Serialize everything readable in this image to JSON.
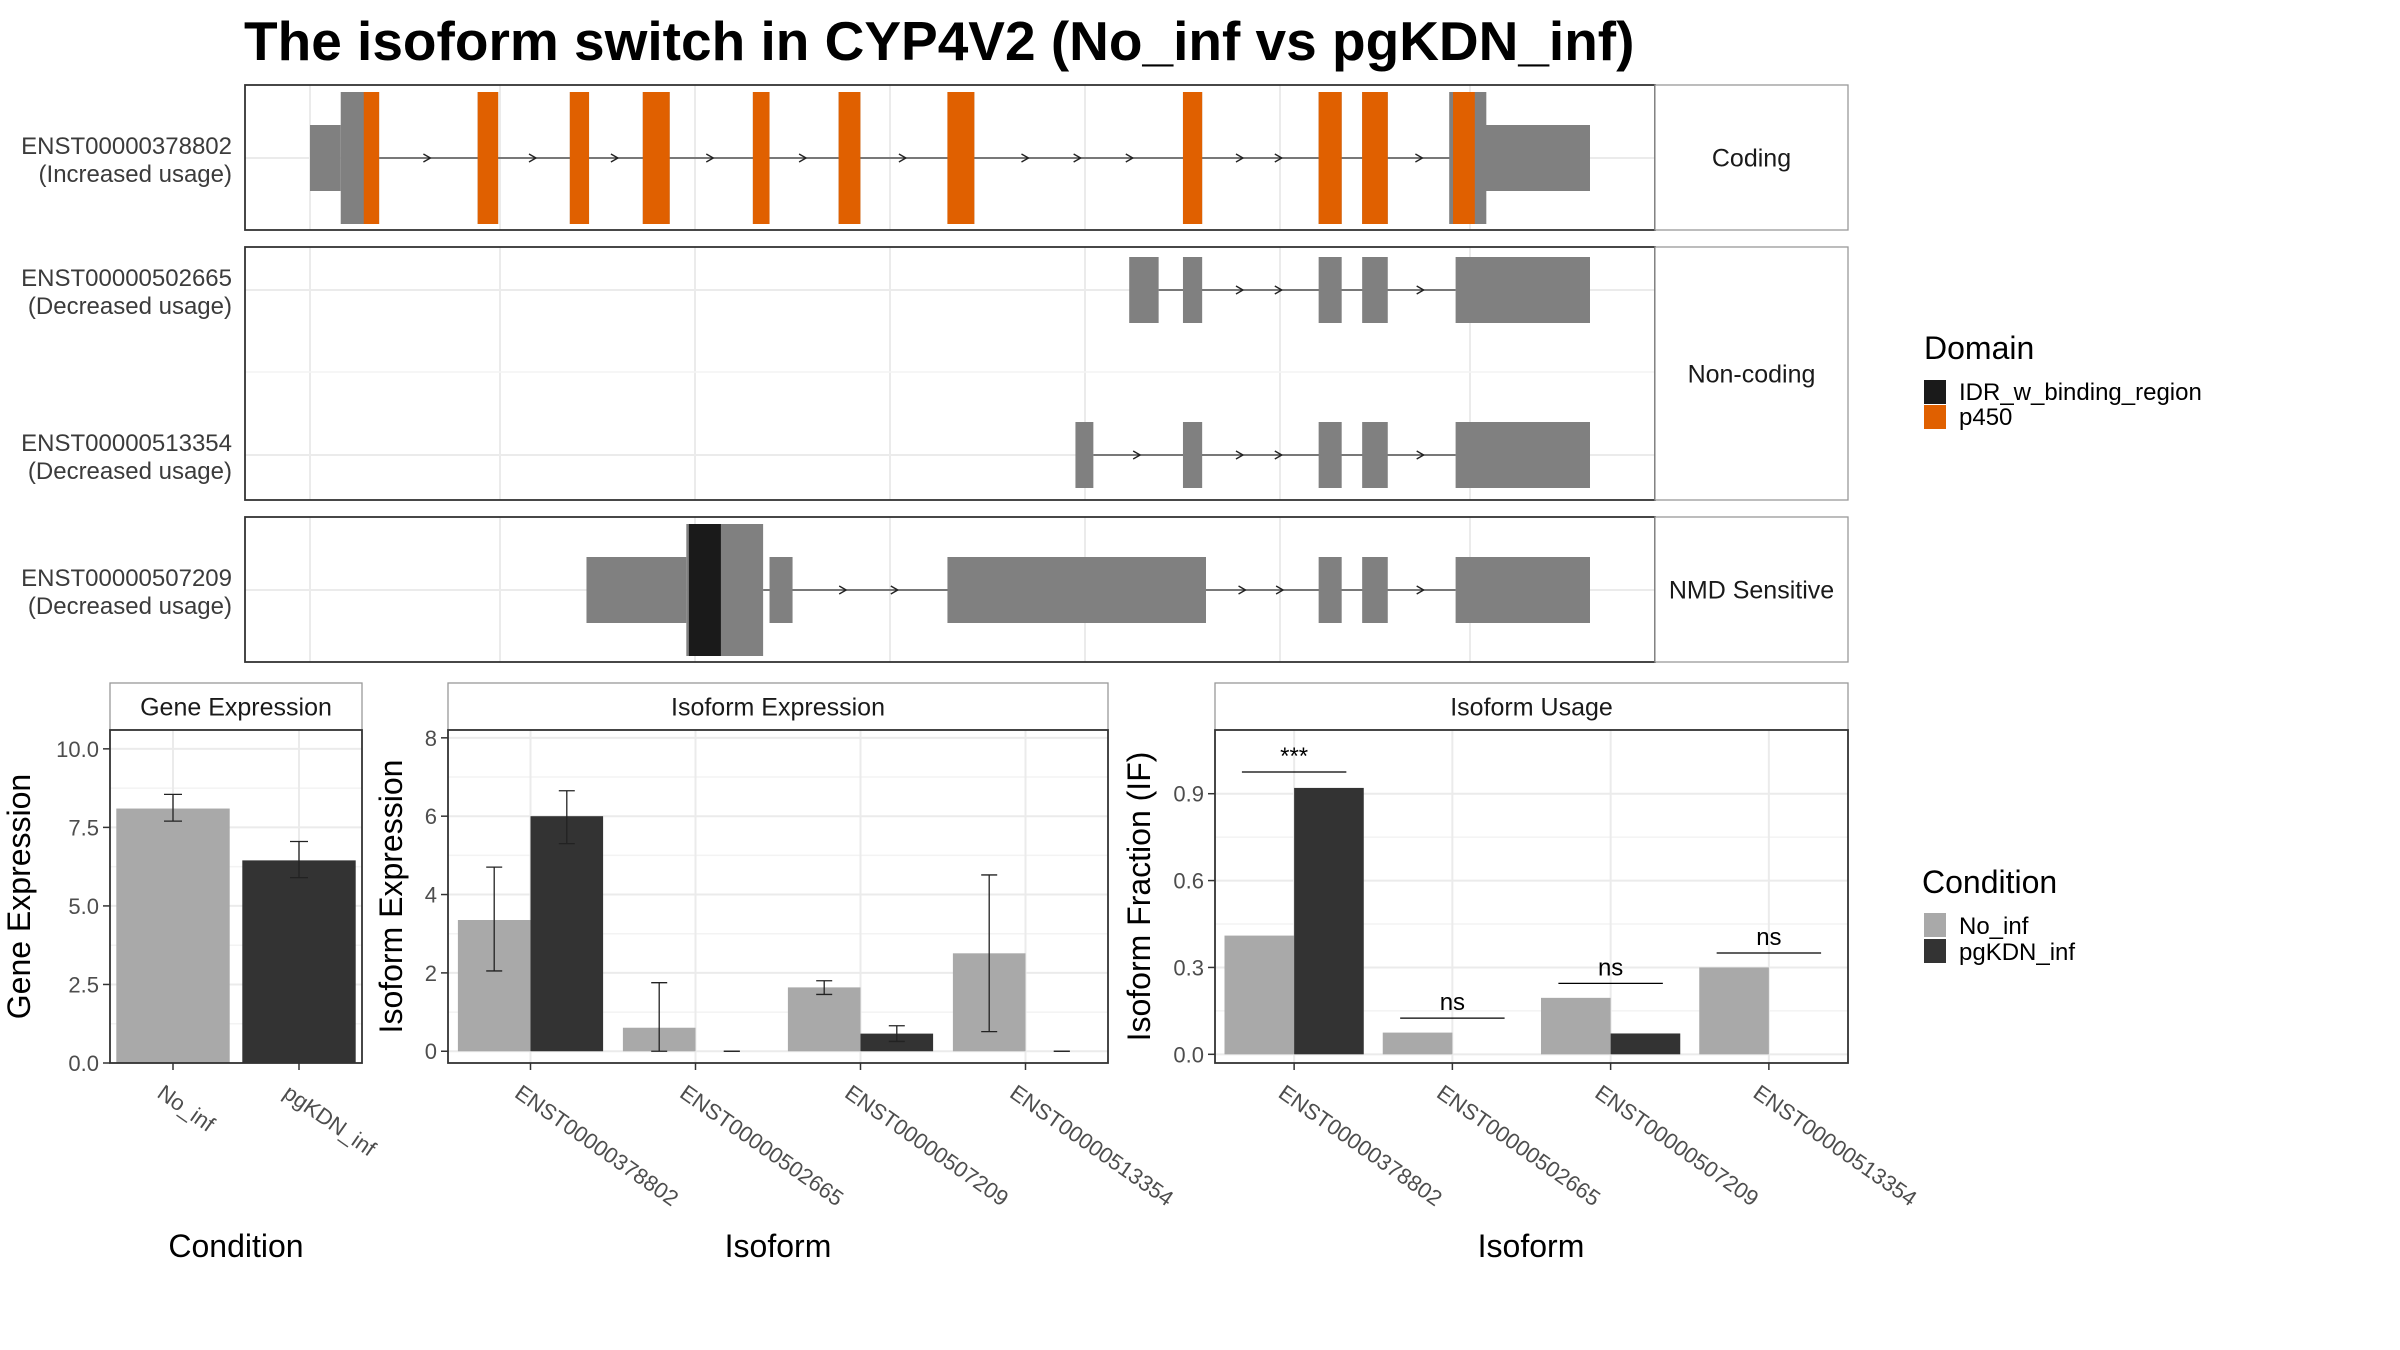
{
  "title": "The isoform switch in CYP4V2 (No_inf vs pgKDN_inf)",
  "colors": {
    "exon": "#808080",
    "p450": "#E06000",
    "idr": "#1a1a1a",
    "no_inf": "#a9a9a9",
    "pgkdn_inf": "#333333",
    "grid": "#ebebeb",
    "panel_border": "#333333",
    "strip_border": "#999999"
  },
  "structure": {
    "coord_range": [
      0,
      1000
    ],
    "panels": [
      {
        "label": "Coding",
        "transcripts": [
          {
            "id": "ENST00000378802",
            "usage": "(Increased usage)",
            "exons": [
              [
                0,
                24,
                "utr"
              ],
              [
                24,
                43,
                "cds"
              ],
              [
                900,
                1000,
                "utr"
              ],
              [
                890,
                919,
                "cds"
              ]
            ],
            "domains": [
              [
                42,
                54,
                "p450"
              ],
              [
                131,
                147,
                "p450"
              ],
              [
                203,
                218,
                "p450"
              ],
              [
                260,
                281,
                "p450"
              ],
              [
                346,
                359,
                "p450"
              ],
              [
                413,
                430,
                "p450"
              ],
              [
                498,
                519,
                "p450"
              ],
              [
                682,
                697,
                "p450"
              ],
              [
                788,
                806,
                "p450"
              ],
              [
                822,
                842,
                "p450"
              ],
              [
                893,
                910,
                "p450"
              ]
            ],
            "cds_blocks": [
              [
                42,
                54
              ],
              [
                131,
                147
              ],
              [
                203,
                218
              ],
              [
                260,
                281
              ],
              [
                346,
                359
              ],
              [
                413,
                430
              ],
              [
                498,
                519
              ],
              [
                682,
                697
              ],
              [
                788,
                806
              ],
              [
                822,
                842
              ],
              [
                893,
                910
              ]
            ],
            "intron_range": [
              54,
              900
            ]
          }
        ]
      },
      {
        "label": "Non-coding",
        "transcripts": [
          {
            "id": "ENST00000502665",
            "usage": "(Decreased usage)",
            "exons": [
              [
                640,
                663,
                "nc"
              ],
              [
                682,
                697,
                "nc"
              ],
              [
                788,
                806,
                "nc"
              ],
              [
                822,
                842,
                "nc"
              ],
              [
                895,
                1000,
                "nc"
              ]
            ],
            "intron_range": [
              663,
              895
            ]
          },
          {
            "id": "ENST00000513354",
            "usage": "(Decreased usage)",
            "exons": [
              [
                598,
                612,
                "nc"
              ],
              [
                682,
                697,
                "nc"
              ],
              [
                788,
                806,
                "nc"
              ],
              [
                822,
                842,
                "nc"
              ],
              [
                895,
                1000,
                "nc"
              ]
            ],
            "intron_range": [
              612,
              895
            ]
          }
        ]
      },
      {
        "label": "NMD Sensitive",
        "transcripts": [
          {
            "id": "ENST00000507209",
            "usage": "(Decreased usage)",
            "exons": [
              [
                216,
                294,
                "nc"
              ],
              [
                294,
                354,
                "cds"
              ],
              [
                359,
                377,
                "nc"
              ],
              [
                498,
                700,
                "nc"
              ],
              [
                788,
                806,
                "nc"
              ],
              [
                822,
                842,
                "nc"
              ],
              [
                895,
                1000,
                "nc"
              ]
            ],
            "domains": [
              [
                296,
                321,
                "idr"
              ]
            ],
            "intron_range": [
              354,
              895
            ]
          }
        ]
      }
    ]
  },
  "legend_domain": {
    "title": "Domain",
    "items": [
      {
        "label": "IDR_w_binding_region",
        "color": "#1a1a1a"
      },
      {
        "label": "p450",
        "color": "#E06000"
      }
    ]
  },
  "legend_condition": {
    "title": "Condition",
    "items": [
      {
        "label": "No_inf",
        "color": "#a9a9a9"
      },
      {
        "label": "pgKDN_inf",
        "color": "#333333"
      }
    ]
  },
  "chart_data": [
    {
      "type": "bar",
      "title": "Gene Expression",
      "xlabel": "Condition",
      "ylabel": "Gene Expression",
      "categories": [
        "No_inf",
        "pgKDN_inf"
      ],
      "values": [
        8.1,
        6.45
      ],
      "errors": [
        [
          7.7,
          8.55
        ],
        [
          5.9,
          7.05
        ]
      ],
      "ylim": [
        0,
        10.6
      ],
      "yticks": [
        0.0,
        2.5,
        5.0,
        7.5,
        10.0
      ],
      "ytick_labels": [
        "0.0",
        "2.5",
        "5.0",
        "7.5",
        "10.0"
      ]
    },
    {
      "type": "bar",
      "title": "Isoform Expression",
      "xlabel": "Isoform",
      "ylabel": "Isoform Expression",
      "categories": [
        "ENST00000378802",
        "ENST00000502665",
        "ENST00000507209",
        "ENST00000513354"
      ],
      "series": [
        {
          "name": "No_inf",
          "values": [
            3.35,
            0.6,
            1.63,
            2.5
          ],
          "errors": [
            [
              2.05,
              4.7
            ],
            [
              0.0,
              1.75
            ],
            [
              1.45,
              1.8
            ],
            [
              0.5,
              4.5
            ]
          ]
        },
        {
          "name": "pgKDN_inf",
          "values": [
            6.0,
            0.0,
            0.45,
            0.0
          ],
          "errors": [
            [
              5.3,
              6.65
            ],
            [
              0.0,
              0.0
            ],
            [
              0.25,
              0.65
            ],
            [
              0.0,
              0.0
            ]
          ]
        }
      ],
      "ylim": [
        -0.3,
        8.2
      ],
      "yticks": [
        0,
        2,
        4,
        6,
        8
      ],
      "ytick_labels": [
        "0",
        "2",
        "4",
        "6",
        "8"
      ]
    },
    {
      "type": "bar",
      "title": "Isoform Usage",
      "xlabel": "Isoform",
      "ylabel": "Isoform Fraction (IF)",
      "categories": [
        "ENST00000378802",
        "ENST00000502665",
        "ENST00000507209",
        "ENST00000513354"
      ],
      "series": [
        {
          "name": "No_inf",
          "values": [
            0.41,
            0.075,
            0.195,
            0.3
          ]
        },
        {
          "name": "pgKDN_inf",
          "values": [
            0.92,
            0.0,
            0.072,
            0.0
          ]
        }
      ],
      "significance": [
        "***",
        "ns",
        "ns",
        "ns"
      ],
      "sig_levels": [
        0.975,
        0.125,
        0.245,
        0.35
      ],
      "ylim": [
        -0.03,
        1.12
      ],
      "yticks": [
        0.0,
        0.3,
        0.6,
        0.9
      ],
      "ytick_labels": [
        "0.0",
        "0.3",
        "0.6",
        "0.9"
      ]
    }
  ]
}
